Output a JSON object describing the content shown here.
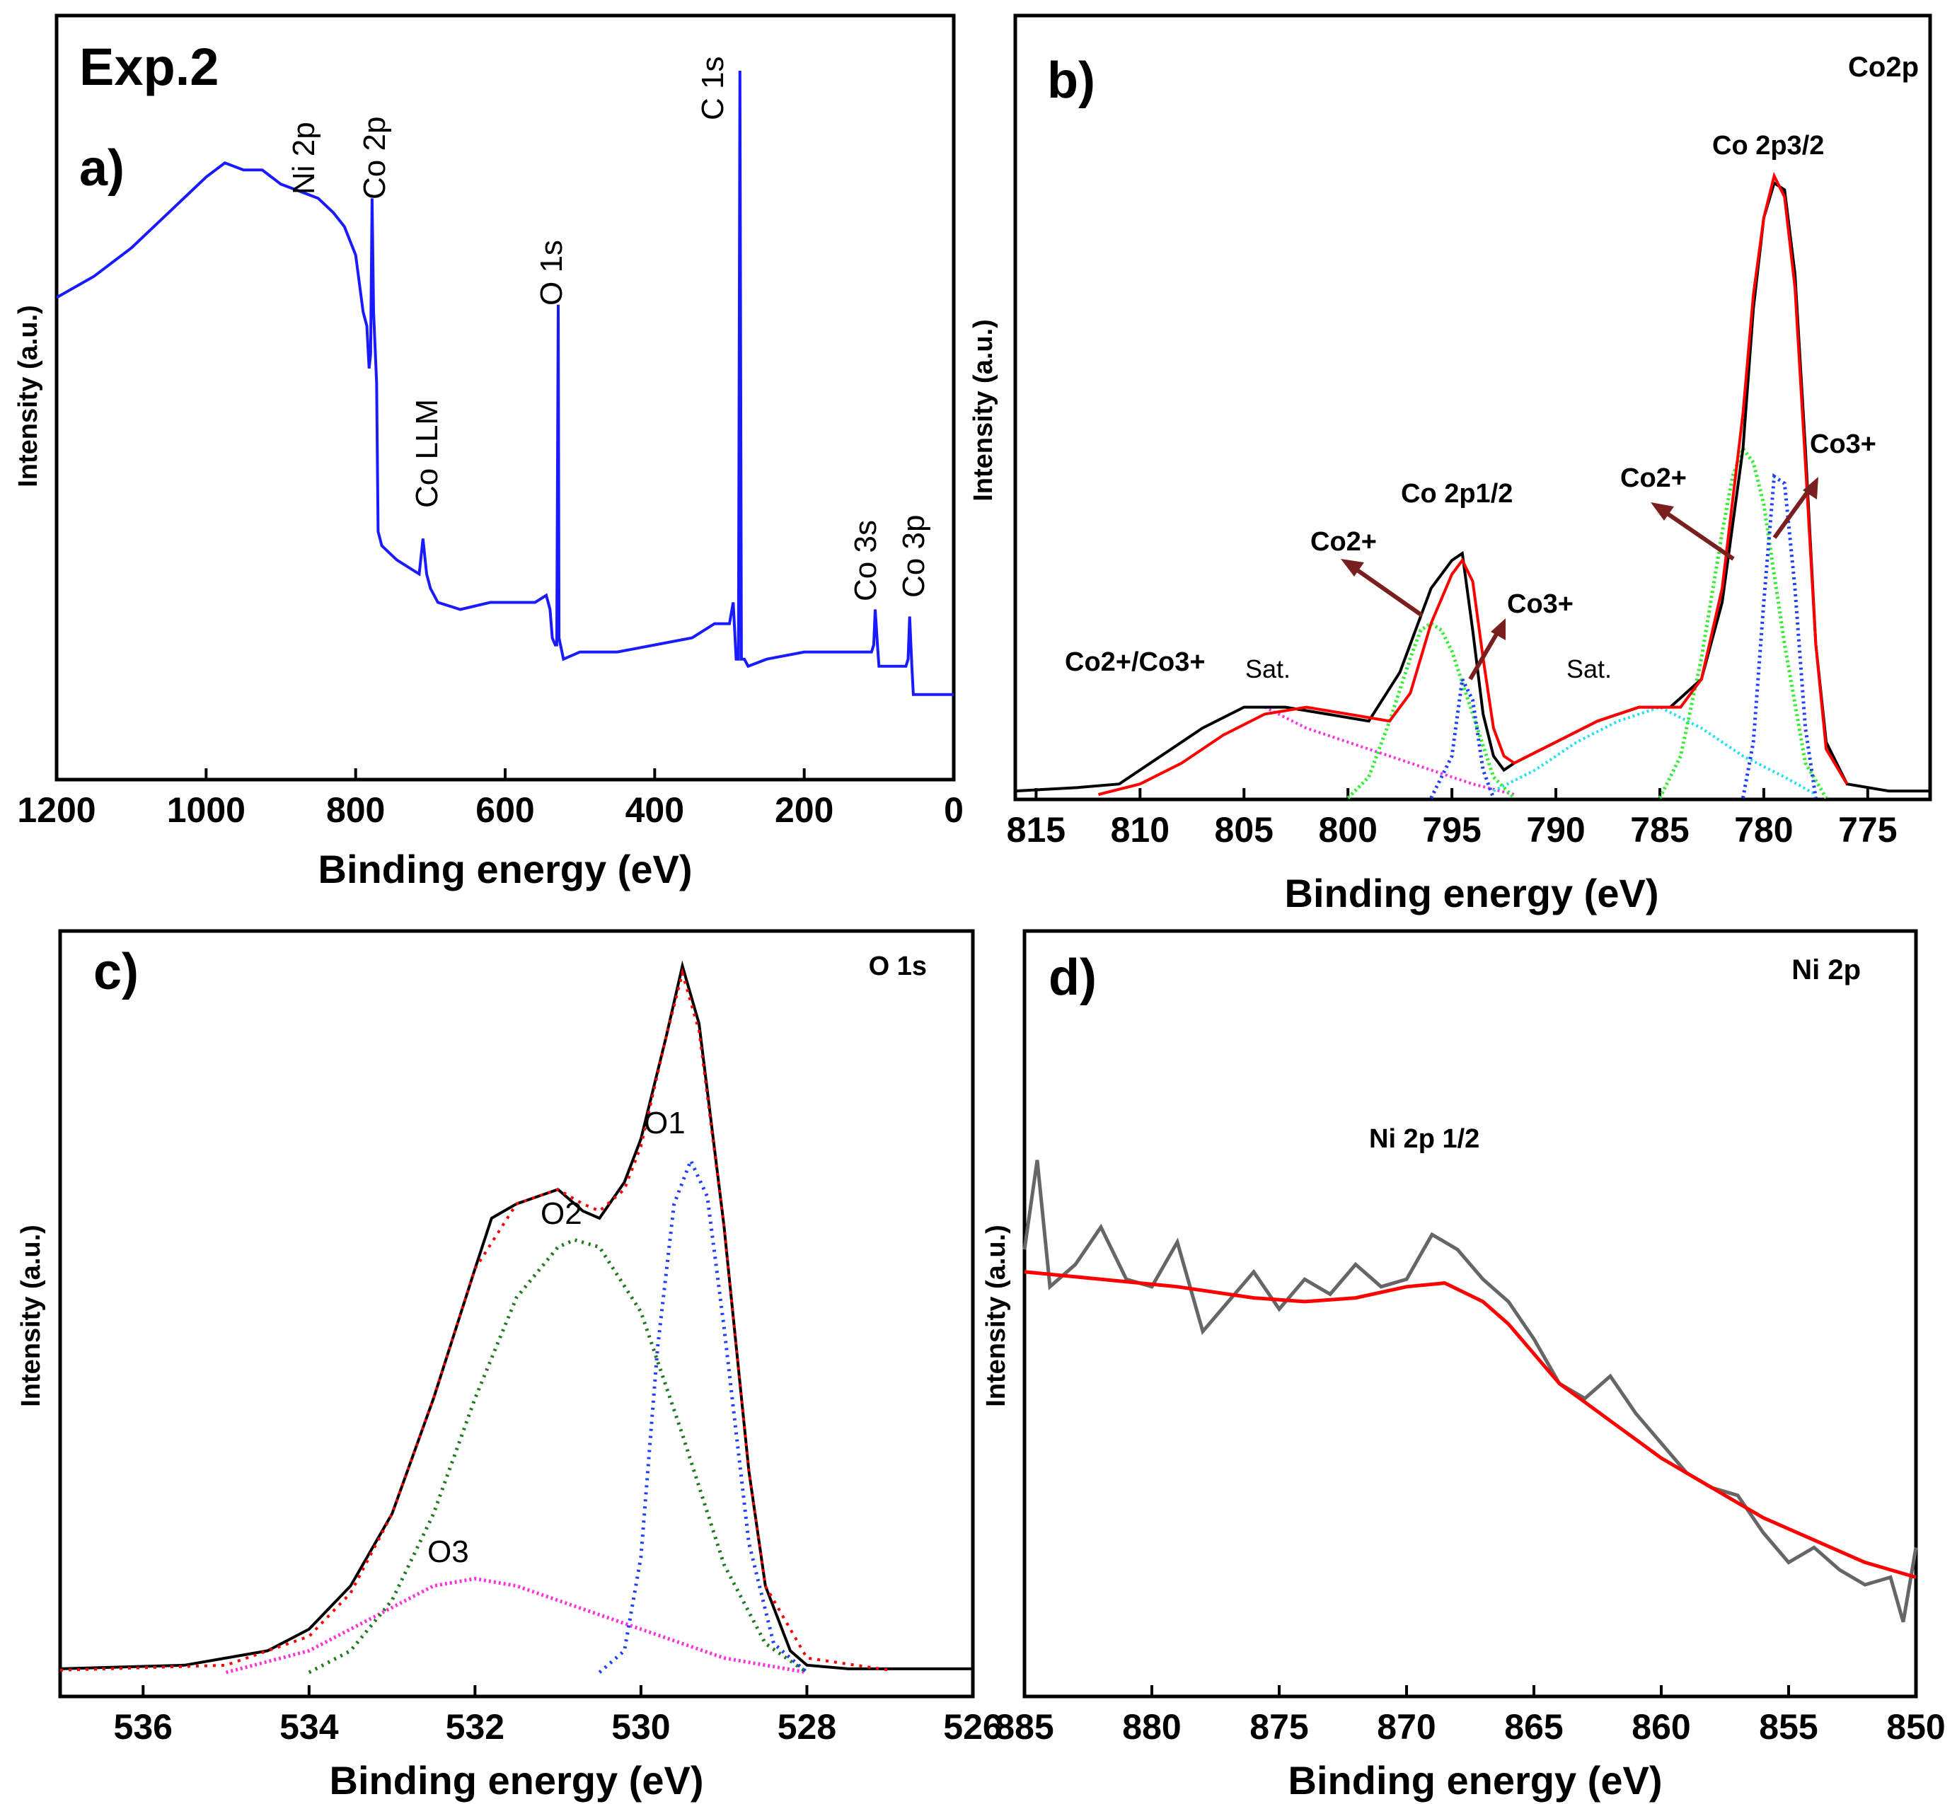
{
  "chart_data": [
    {
      "id": "a",
      "type": "line",
      "panel_label": "a)",
      "title": "Exp.2",
      "xlabel": "Binding energy (eV)",
      "ylabel": "Intensity (a.u.)",
      "xlim": [
        1200,
        0
      ],
      "ylim": [
        0,
        100
      ],
      "xticks": [
        1200,
        1000,
        800,
        600,
        400,
        200,
        0
      ],
      "colors": {
        "survey": "#1a1aff"
      },
      "series": [
        {
          "name": "survey",
          "x": [
            1200,
            1150,
            1100,
            1050,
            1000,
            975,
            950,
            925,
            900,
            875,
            850,
            830,
            815,
            800,
            790,
            785,
            782,
            780,
            778,
            776,
            772,
            770,
            765,
            755,
            745,
            730,
            715,
            710,
            705,
            700,
            690,
            660,
            620,
            580,
            560,
            545,
            540,
            537,
            533,
            531,
            529,
            528,
            526,
            522,
            500,
            450,
            400,
            350,
            320,
            300,
            295,
            291,
            288,
            286,
            284,
            282,
            280,
            275,
            250,
            200,
            150,
            130,
            110,
            107,
            105,
            102,
            100,
            95,
            75,
            68,
            64,
            61,
            59,
            56,
            54,
            50,
            40,
            20,
            0
          ],
          "y": [
            68,
            71,
            75,
            80,
            85,
            87,
            86,
            86,
            84,
            83,
            82,
            80,
            78,
            74,
            66,
            64,
            58,
            60,
            82,
            66,
            56,
            35,
            33,
            32,
            31,
            30,
            29,
            34,
            29,
            27,
            25,
            24,
            25,
            25,
            25,
            26,
            24,
            20,
            19,
            19,
            67,
            20,
            19,
            17,
            18,
            18,
            19,
            20,
            22,
            22,
            25,
            17,
            17,
            100,
            17,
            17,
            17,
            16,
            17,
            18,
            18,
            18,
            18,
            19,
            24,
            19,
            16,
            16,
            16,
            16,
            16,
            17,
            23,
            16,
            12,
            12,
            12,
            12,
            12
          ]
        }
      ],
      "peak_labels": [
        {
          "text": "Ni 2p",
          "x": 870
        },
        {
          "text": "Co 2p",
          "x": 782
        },
        {
          "text": "Co LLM",
          "x": 714
        },
        {
          "text": "O 1s",
          "x": 532
        },
        {
          "text": "C 1s",
          "x": 288
        },
        {
          "text": "Co 3s",
          "x": 106
        },
        {
          "text": "Co 3p",
          "x": 60
        }
      ]
    },
    {
      "id": "b",
      "type": "line",
      "panel_label": "b)",
      "title": "Co2p",
      "xlabel": "Binding energy (eV)",
      "ylabel": "Intensity (a.u.)",
      "xlim": [
        816,
        772
      ],
      "ylim": [
        0,
        100
      ],
      "xticks": [
        815,
        810,
        805,
        800,
        795,
        790,
        785,
        780,
        775
      ],
      "colors": {
        "experimental": "#000000",
        "fit": "#ff0000",
        "co2_sat": "#ff33dd",
        "co2p12_co2": "#33ee33",
        "co2p12_co3": "#1f3fff",
        "sat_780": "#22e0ee",
        "co2p32_co2": "#33ee33",
        "co2p32_co3": "#1f3fff",
        "arrow": "#7a1f1f"
      },
      "series": [
        {
          "name": "experimental",
          "x": [
            816,
            813,
            811,
            809,
            807,
            805,
            803,
            801,
            799,
            797.5,
            796,
            795,
            794.5,
            794,
            793.5,
            793,
            792.5,
            792,
            790,
            788,
            786,
            784.5,
            783,
            782,
            781,
            780.5,
            780,
            779.5,
            779,
            778.5,
            778,
            777.5,
            777,
            776,
            774,
            772
          ],
          "y": [
            1,
            1.5,
            2,
            6,
            10,
            13,
            13,
            12,
            11,
            18,
            30,
            34,
            35,
            24,
            12,
            6,
            4,
            5,
            8,
            11,
            13,
            13,
            17,
            28,
            50,
            70,
            83,
            88,
            87,
            75,
            50,
            22,
            8,
            2,
            1,
            1
          ]
        },
        {
          "name": "fit",
          "x": [
            812,
            810,
            808,
            806,
            804,
            802,
            800,
            798,
            797,
            796,
            795,
            794.5,
            794,
            793.5,
            793,
            792.5,
            792,
            790,
            788,
            786,
            784,
            783,
            782,
            781,
            780.5,
            780,
            779.5,
            779,
            778.5,
            778,
            777.5,
            777,
            776
          ],
          "y": [
            0.5,
            2,
            5,
            9,
            12,
            13,
            12,
            11,
            15,
            25,
            32,
            34,
            31,
            20,
            10,
            6,
            5,
            8,
            11,
            13,
            13,
            17,
            30,
            55,
            72,
            83,
            89,
            86,
            73,
            48,
            22,
            7,
            2
          ]
        },
        {
          "name": "co2_sat",
          "x": [
            804,
            802,
            800,
            798,
            796,
            794,
            792
          ],
          "y": [
            13,
            10,
            8,
            6,
            4,
            2,
            0.5
          ]
        },
        {
          "name": "co2p12_co2",
          "x": [
            800,
            799,
            798,
            797,
            796.5,
            796,
            795.5,
            795,
            794,
            793,
            792
          ],
          "y": [
            0,
            3,
            11,
            20,
            24,
            25,
            24,
            21,
            12,
            3,
            0
          ]
        },
        {
          "name": "co2p12_co3",
          "x": [
            796,
            795,
            794.5,
            794,
            793.5,
            793
          ],
          "y": [
            0,
            6,
            17,
            14,
            4,
            0
          ]
        },
        {
          "name": "sat_780",
          "x": [
            793,
            791,
            789,
            787,
            785,
            783,
            781,
            779,
            777.5
          ],
          "y": [
            1,
            4,
            8,
            11,
            13,
            10,
            6,
            3,
            0.5
          ]
        },
        {
          "name": "co2p32_co2",
          "x": [
            785,
            784,
            783,
            782,
            781.5,
            781,
            780.5,
            780,
            779,
            778,
            777
          ],
          "y": [
            0,
            6,
            20,
            38,
            46,
            50,
            48,
            42,
            22,
            5,
            0
          ]
        },
        {
          "name": "co2p32_co3",
          "x": [
            781,
            780.5,
            780,
            779.5,
            779,
            778.5,
            778,
            777.5
          ],
          "y": [
            0,
            8,
            28,
            46,
            45,
            30,
            10,
            0
          ]
        }
      ],
      "annotations": [
        {
          "text": "Co 2p1/2",
          "x": 794.5,
          "y": 40
        },
        {
          "text": "Co 2p3/2",
          "x": 780,
          "y": 94
        },
        {
          "text": "Co2+",
          "x": 798,
          "y": 36
        },
        {
          "text": "Co3+",
          "x": 790,
          "y": 28
        },
        {
          "text": "Co2+",
          "x": 784,
          "y": 46
        },
        {
          "text": "Co3+",
          "x": 776,
          "y": 50
        },
        {
          "text": "Sat.",
          "x": 801,
          "y": 17
        },
        {
          "text": "Sat.",
          "x": 788,
          "y": 17
        },
        {
          "text": "Co2+/Co3+",
          "x": 807,
          "y": 19
        }
      ]
    },
    {
      "id": "c",
      "type": "line",
      "panel_label": "c)",
      "title": "O 1s",
      "xlabel": "Binding energy (eV)",
      "ylabel": "Intensity (a.u.)",
      "xlim": [
        537,
        526
      ],
      "ylim": [
        0,
        100
      ],
      "xticks": [
        536,
        534,
        532,
        530,
        528,
        526
      ],
      "colors": {
        "experimental": "#000000",
        "fit": "#ff0000",
        "O2": "#1f7a1f",
        "O1": "#1f3fff",
        "O3": "#ff33dd"
      },
      "series": [
        {
          "name": "experimental",
          "x": [
            537,
            535.5,
            534.5,
            534,
            533.5,
            533,
            532.5,
            532,
            531.8,
            531.5,
            531,
            530.7,
            530.5,
            530.2,
            530,
            529.7,
            529.5,
            529.3,
            529,
            528.7,
            528.5,
            528.2,
            528,
            527.5,
            526
          ],
          "y": [
            0.5,
            1,
            3,
            6,
            12,
            22,
            38,
            56,
            63,
            65,
            67,
            64,
            63,
            68,
            74,
            88,
            98,
            90,
            62,
            28,
            12,
            3,
            1,
            0.5,
            0.5
          ]
        },
        {
          "name": "fit",
          "x": [
            537,
            535,
            534,
            533.5,
            533,
            532.5,
            532,
            531.5,
            531,
            530.7,
            530.5,
            530.2,
            530,
            529.7,
            529.5,
            529.3,
            529,
            528.7,
            528.5,
            528,
            527
          ],
          "y": [
            0.3,
            1,
            5,
            11,
            22,
            38,
            56,
            65,
            67,
            65,
            64,
            67,
            73,
            88,
            97,
            89,
            62,
            28,
            12,
            2,
            0.3
          ]
        },
        {
          "name": "O2",
          "x": [
            534,
            533.5,
            533,
            532.5,
            532,
            531.5,
            531,
            530.8,
            530.5,
            530,
            529.5,
            529,
            528.5,
            528
          ],
          "y": [
            0,
            3,
            10,
            22,
            38,
            52,
            59,
            60,
            59,
            50,
            33,
            15,
            4,
            0
          ]
        },
        {
          "name": "O1",
          "x": [
            530.5,
            530.2,
            530,
            529.8,
            529.6,
            529.4,
            529.2,
            529,
            528.7,
            528.4,
            528
          ],
          "y": [
            0,
            3,
            16,
            45,
            65,
            71,
            66,
            48,
            18,
            4,
            0
          ]
        },
        {
          "name": "O3",
          "x": [
            535,
            534,
            533,
            532.5,
            532,
            531.5,
            531,
            530.5,
            530,
            529,
            528
          ],
          "y": [
            0,
            3,
            9,
            12,
            13,
            12,
            10,
            8,
            6,
            2,
            0
          ]
        }
      ],
      "peak_labels": [
        {
          "text": "O1",
          "x": 529.8
        },
        {
          "text": "O2",
          "x": 530.8
        },
        {
          "text": "O3",
          "x": 532.3
        }
      ]
    },
    {
      "id": "d",
      "type": "line",
      "panel_label": "d)",
      "title": "Ni 2p",
      "xlabel": "Binding energy (eV)",
      "ylabel": "Intensity (a.u.)",
      "xlim": [
        885,
        850
      ],
      "ylim": [
        0,
        100
      ],
      "xticks": [
        885,
        880,
        875,
        870,
        865,
        860,
        855,
        850
      ],
      "colors": {
        "experimental": "#666666",
        "fit": "#ff0000"
      },
      "series": [
        {
          "name": "experimental",
          "x": [
            885,
            884.5,
            884,
            883,
            882,
            881,
            880,
            879,
            878,
            877,
            876,
            875,
            874,
            873,
            872,
            871,
            870,
            869,
            868,
            867,
            866,
            865,
            864,
            863,
            862,
            861,
            860,
            859,
            858,
            857,
            856,
            855,
            854,
            853,
            852,
            851,
            850.5,
            850
          ],
          "y": [
            60,
            72,
            55,
            58,
            63,
            56,
            55,
            61,
            49,
            53,
            57,
            52,
            56,
            54,
            58,
            55,
            56,
            62,
            60,
            56,
            53,
            48,
            42,
            40,
            43,
            38,
            34,
            30,
            28,
            27,
            22,
            18,
            20,
            17,
            15,
            16,
            10,
            20
          ]
        },
        {
          "name": "fit",
          "x": [
            885,
            882,
            879,
            876,
            874,
            872,
            870,
            868.5,
            867,
            866,
            865,
            864,
            862,
            860,
            858,
            856,
            854,
            852,
            850
          ],
          "y": [
            57,
            56,
            55,
            53.5,
            53,
            53.5,
            55,
            55.5,
            53,
            50,
            46,
            42,
            37,
            32,
            28,
            24,
            21,
            18,
            16
          ]
        }
      ],
      "annotations": [
        {
          "text": "Ni 2p 1/2",
          "x": 868.5,
          "y": 74
        }
      ]
    }
  ]
}
